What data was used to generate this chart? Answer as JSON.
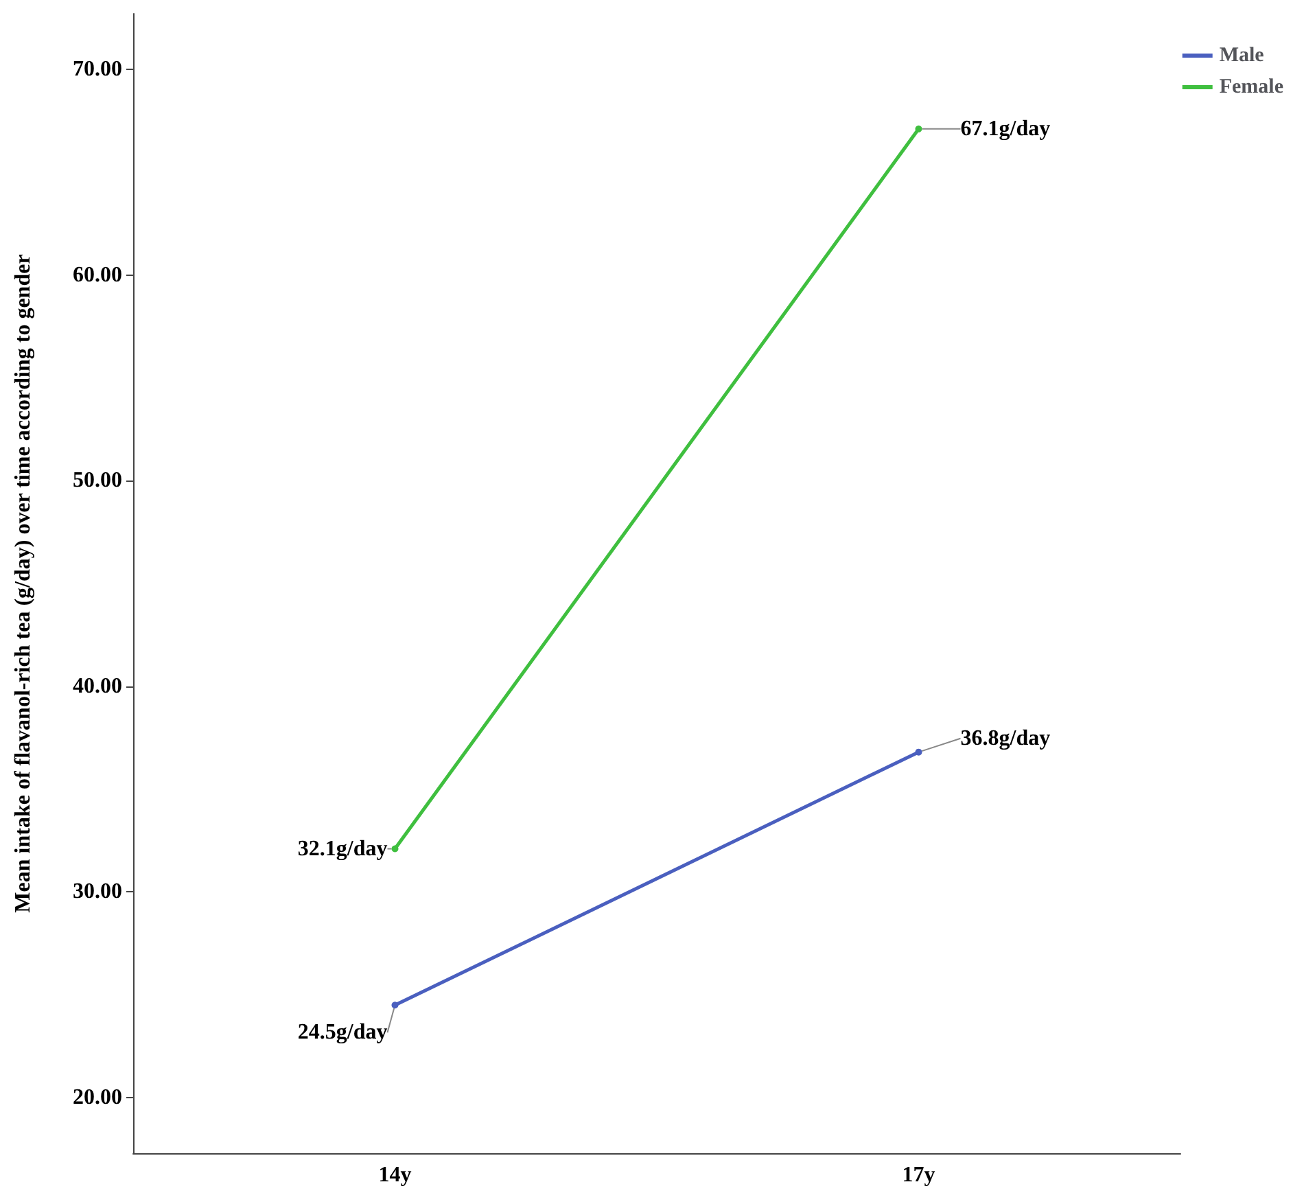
{
  "chart_data": {
    "type": "line",
    "ylabel": "Mean intake of flavanol-rich tea (g/day) over time according to gender",
    "categories": [
      "14y",
      "17y"
    ],
    "series": [
      {
        "name": "Male",
        "color": "#4a5fbf",
        "values": [
          24.5,
          36.8
        ],
        "value_labels": [
          "24.5g/day",
          "36.8g/day"
        ]
      },
      {
        "name": "Female",
        "color": "#3fbf3f",
        "values": [
          32.1,
          67.1
        ],
        "value_labels": [
          "32.1g/day",
          "67.1g/day"
        ]
      }
    ],
    "ylim": [
      17.3,
      72.7
    ],
    "yticks": [
      {
        "value": 20,
        "label": "20.00"
      },
      {
        "value": 30,
        "label": "30.00"
      },
      {
        "value": 40,
        "label": "40.00"
      },
      {
        "value": 50,
        "label": "50.00"
      },
      {
        "value": 60,
        "label": "60.00"
      },
      {
        "value": 70,
        "label": "70.00"
      }
    ],
    "grid": false,
    "legend": "top right",
    "marker": "circle",
    "line_style": "solid"
  }
}
